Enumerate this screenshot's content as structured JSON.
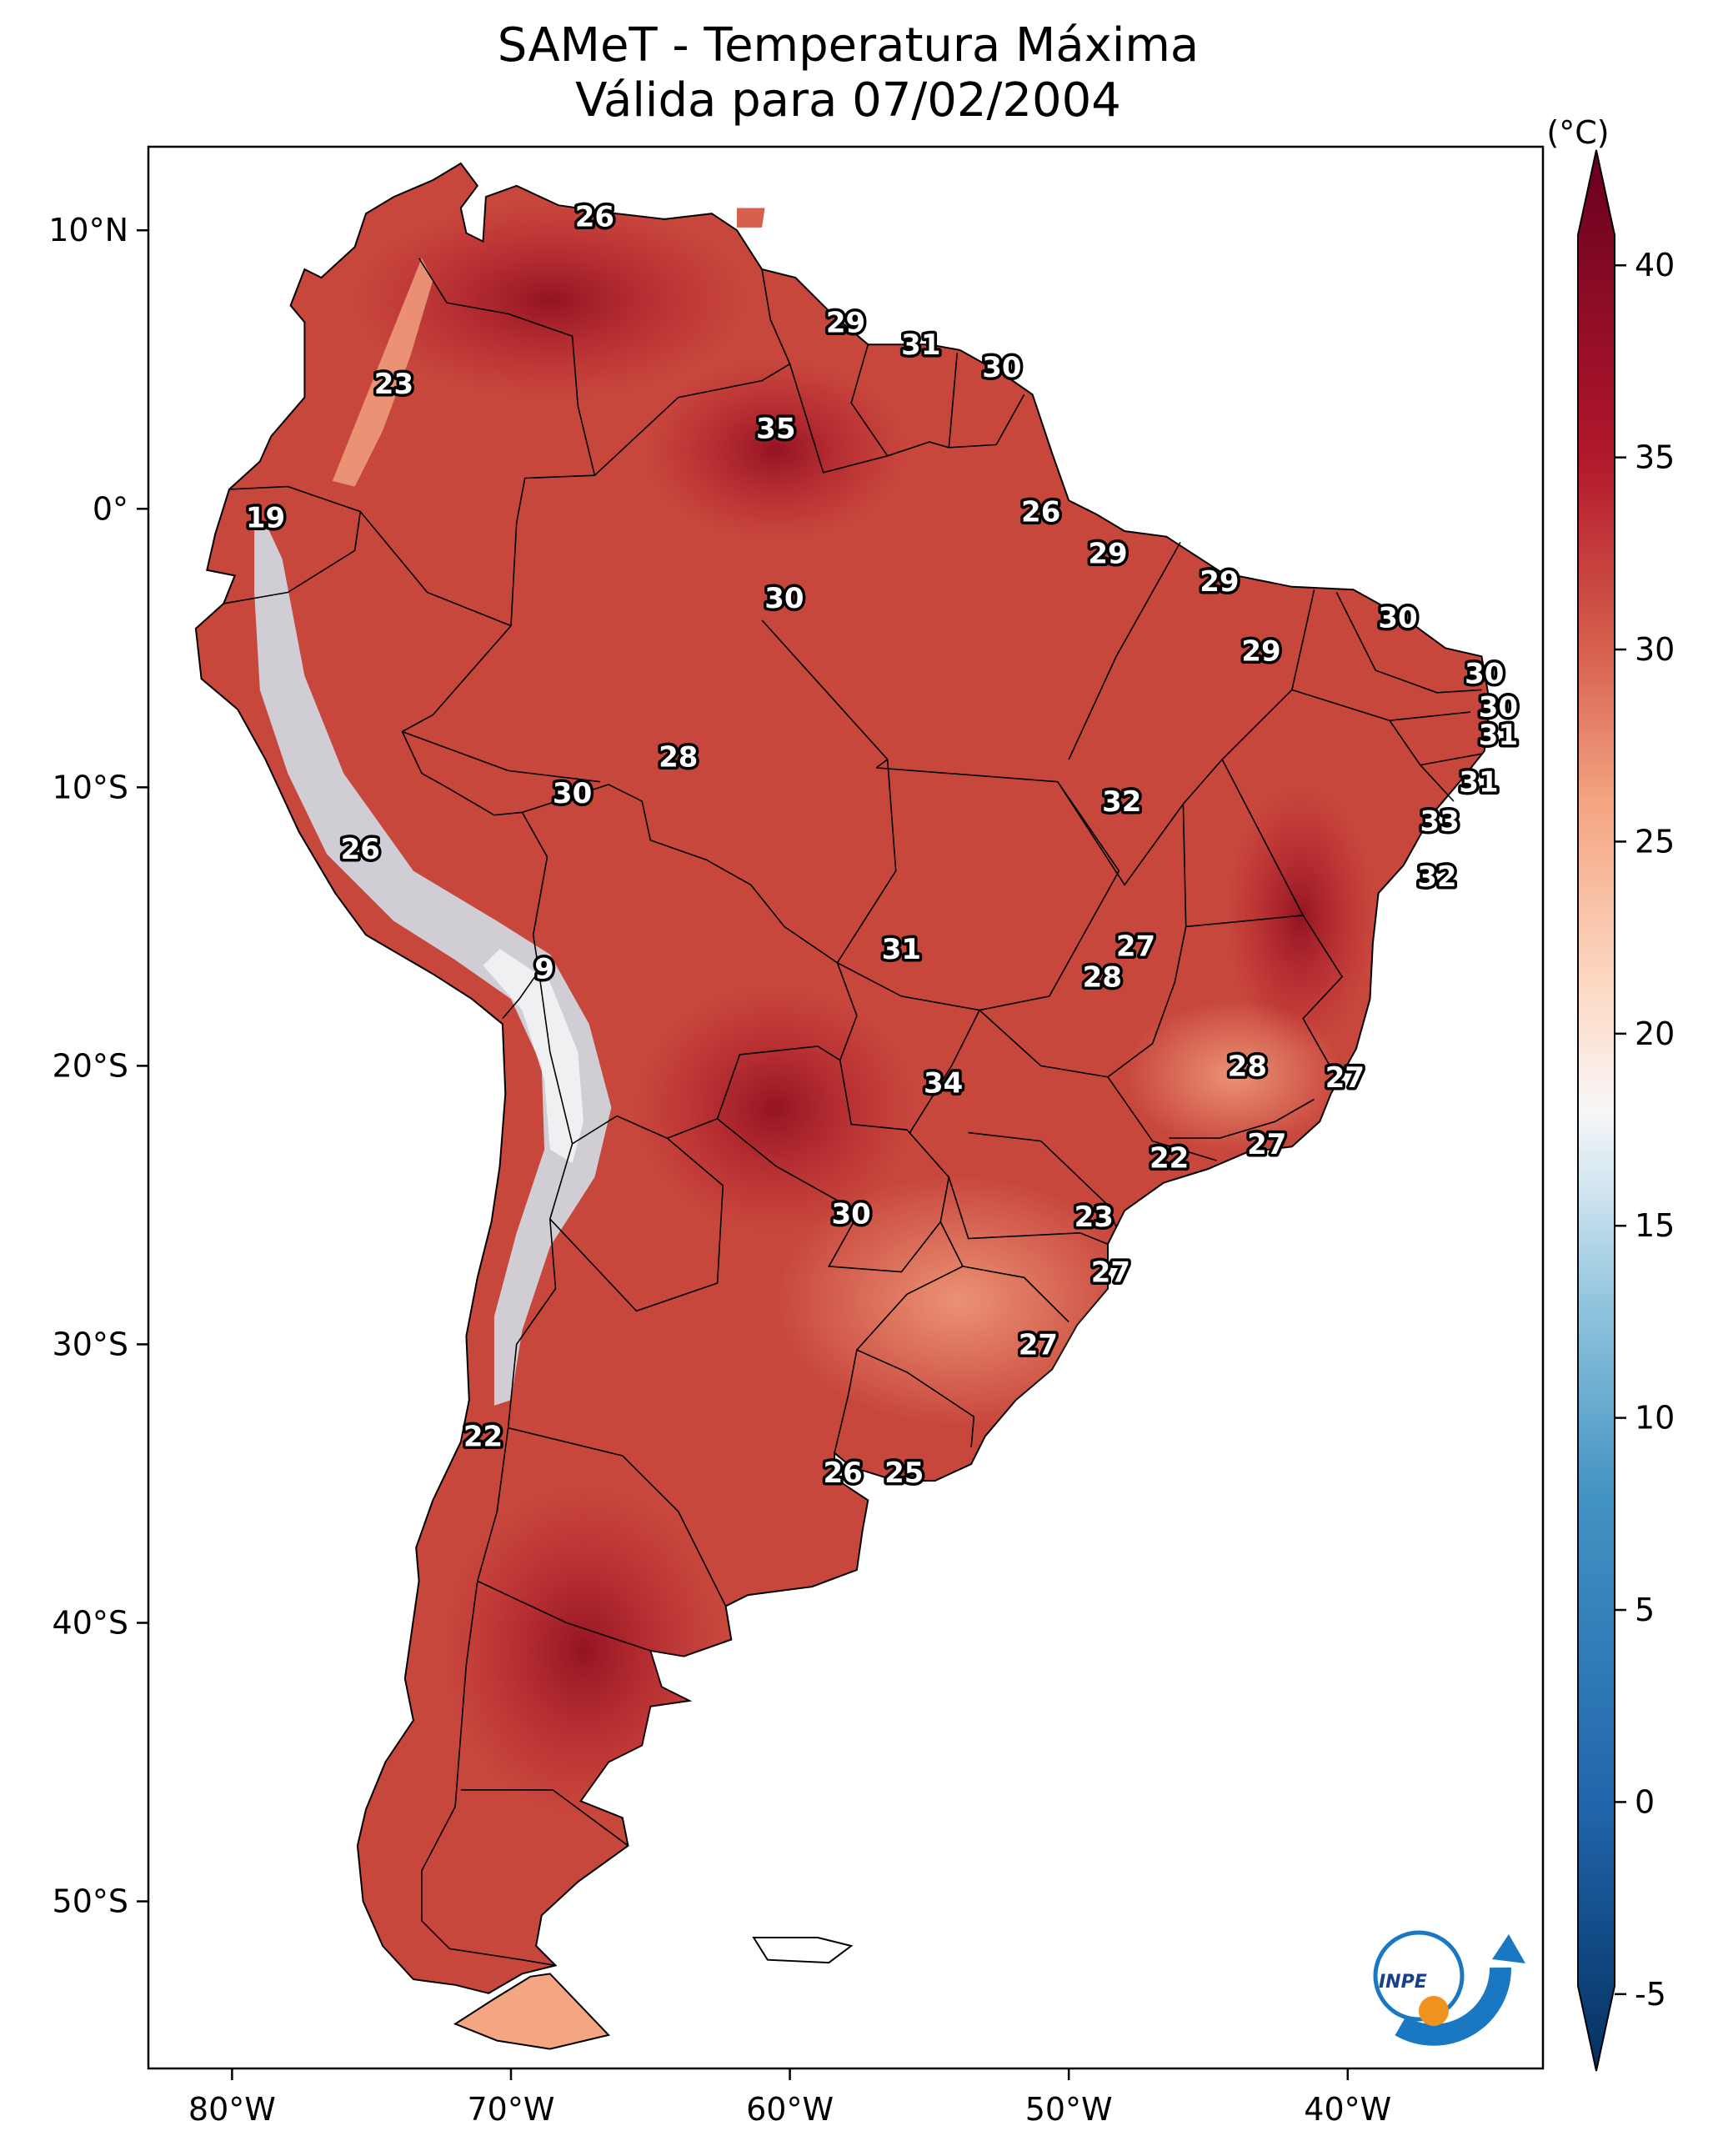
{
  "title": {
    "line1": "SAMeT - Temperatura Máxima",
    "line2": "Válida para 07/02/2004"
  },
  "map": {
    "lon_range": [
      -83,
      -33
    ],
    "lat_range": [
      -56,
      13
    ],
    "lon_ticks": [
      "80°W",
      "70°W",
      "60°W",
      "50°W",
      "40°W"
    ],
    "lat_ticks": [
      "10°N",
      "0°",
      "10°S",
      "20°S",
      "30°S",
      "40°S",
      "50°S"
    ]
  },
  "colorbar": {
    "unit": "(°C)",
    "min": -7,
    "max": 43,
    "tick_labels": [
      "40",
      "35",
      "30",
      "25",
      "20",
      "15",
      "10",
      "5",
      "0",
      "-5"
    ],
    "colors": {
      "c_m7": "#053061",
      "c_0": "#2166ac",
      "c_8": "#4393c3",
      "c_13": "#92c5de",
      "c_16": "#d1e5f0",
      "c_18": "#f7f7f7",
      "c_21": "#fddbc7",
      "c_26": "#f4a582",
      "c_30": "#d6604d",
      "c_35": "#b2182b",
      "c_43": "#67001f"
    }
  },
  "temperature_labels": [
    {
      "text": "26",
      "lon": -67,
      "lat": 10.5
    },
    {
      "text": "29",
      "lon": -58,
      "lat": 6.7
    },
    {
      "text": "31",
      "lon": -55.3,
      "lat": 5.9
    },
    {
      "text": "30",
      "lon": -52.4,
      "lat": 5.1
    },
    {
      "text": "23",
      "lon": -74.2,
      "lat": 4.5
    },
    {
      "text": "35",
      "lon": -60.5,
      "lat": 2.9
    },
    {
      "text": "19",
      "lon": -78.8,
      "lat": -0.3
    },
    {
      "text": "26",
      "lon": -51,
      "lat": -0.1
    },
    {
      "text": "29",
      "lon": -48.6,
      "lat": -1.6
    },
    {
      "text": "29",
      "lon": -44.6,
      "lat": -2.6
    },
    {
      "text": "30",
      "lon": -60.2,
      "lat": -3.2
    },
    {
      "text": "30",
      "lon": -38.2,
      "lat": -3.9
    },
    {
      "text": "29",
      "lon": -43.1,
      "lat": -5.1
    },
    {
      "text": "30",
      "lon": -35.1,
      "lat": -5.9
    },
    {
      "text": "30",
      "lon": -34.6,
      "lat": -7.1
    },
    {
      "text": "31",
      "lon": -34.6,
      "lat": -8.1
    },
    {
      "text": "28",
      "lon": -64,
      "lat": -8.9
    },
    {
      "text": "30",
      "lon": -67.8,
      "lat": -10.2
    },
    {
      "text": "31",
      "lon": -35.3,
      "lat": -9.8
    },
    {
      "text": "32",
      "lon": -48.1,
      "lat": -10.5
    },
    {
      "text": "33",
      "lon": -36.7,
      "lat": -11.2
    },
    {
      "text": "26",
      "lon": -75.4,
      "lat": -12.2
    },
    {
      "text": "32",
      "lon": -36.8,
      "lat": -13.2
    },
    {
      "text": "27",
      "lon": -47.6,
      "lat": -15.7
    },
    {
      "text": "31",
      "lon": -56,
      "lat": -15.8
    },
    {
      "text": "28",
      "lon": -48.8,
      "lat": -16.8
    },
    {
      "text": "9",
      "lon": -68.8,
      "lat": -16.5
    },
    {
      "text": "28",
      "lon": -43.6,
      "lat": -20
    },
    {
      "text": "34",
      "lon": -54.5,
      "lat": -20.6
    },
    {
      "text": "27",
      "lon": -40.1,
      "lat": -20.4
    },
    {
      "text": "27",
      "lon": -42.9,
      "lat": -22.8
    },
    {
      "text": "22",
      "lon": -46.4,
      "lat": -23.3
    },
    {
      "text": "30",
      "lon": -57.8,
      "lat": -25.3
    },
    {
      "text": "23",
      "lon": -49.1,
      "lat": -25.4
    },
    {
      "text": "27",
      "lon": -48.5,
      "lat": -27.4
    },
    {
      "text": "27",
      "lon": -51.1,
      "lat": -30
    },
    {
      "text": "22",
      "lon": -71,
      "lat": -33.3
    },
    {
      "text": "26",
      "lon": -58.1,
      "lat": -34.6
    },
    {
      "text": "25",
      "lon": -55.9,
      "lat": -34.6
    }
  ],
  "logo": {
    "text": "INPE"
  }
}
